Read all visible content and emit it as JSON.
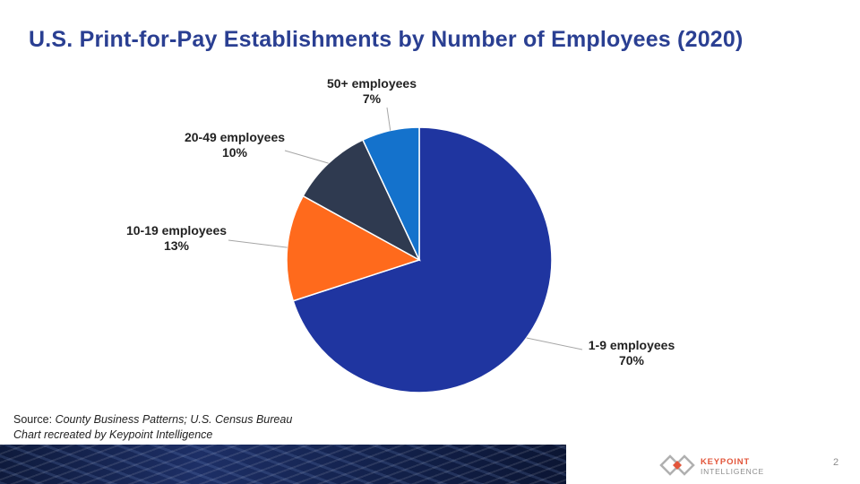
{
  "title": "U.S. Print-for-Pay Establishments by Number of Employees (2020)",
  "chart_data": {
    "type": "pie",
    "title": "U.S. Print-for-Pay Establishments by Number of Employees (2020)",
    "slices": [
      {
        "label": "1-9 employees",
        "value": 70,
        "display": "70%",
        "color": "#1f35a0"
      },
      {
        "label": "10-19 employees",
        "value": 13,
        "display": "13%",
        "color": "#ff6a1c"
      },
      {
        "label": "20-49 employees",
        "value": 10,
        "display": "10%",
        "color": "#2f3a50"
      },
      {
        "label": "50+ employees",
        "value": 7,
        "display": "7%",
        "color": "#1472cc"
      }
    ],
    "legend": "none (data labels with leader lines)"
  },
  "source": {
    "prefix": "Source: ",
    "text": "County Business Patterns; U.S. Census Bureau",
    "credit": "Chart recreated by Keypoint Intelligence"
  },
  "footer": {
    "logo_line1": "KEYPOINT",
    "logo_line2": "INTELLIGENCE",
    "page_number": "2"
  },
  "colors": {
    "title": "#2a3f92",
    "logo_accent": "#e2553a"
  }
}
